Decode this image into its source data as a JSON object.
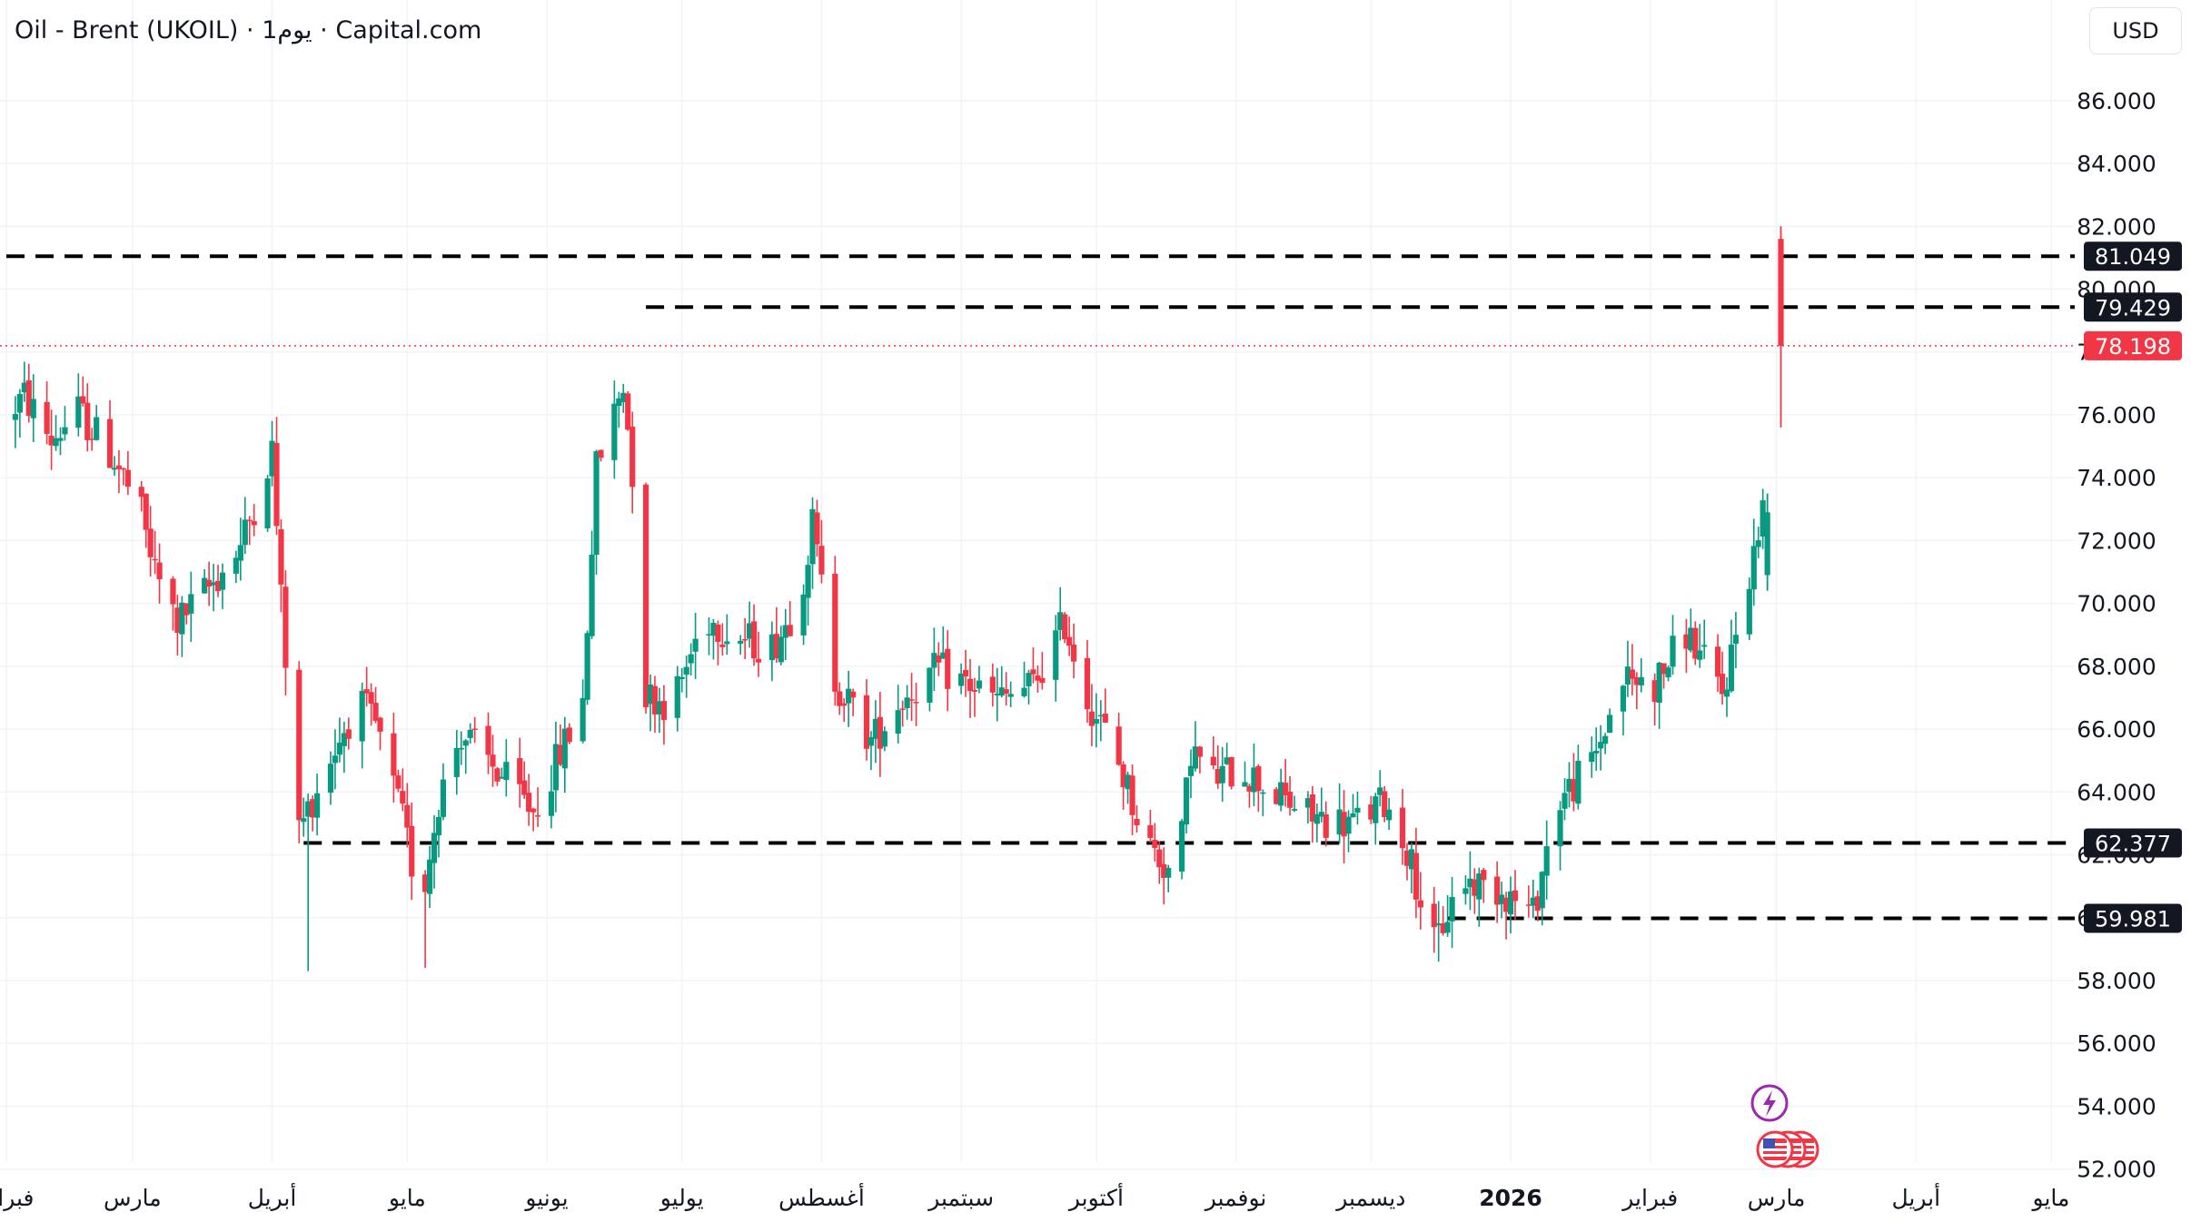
{
  "header": {
    "symbol": "Oil - Brent (UKOIL)",
    "interval": "1يوم",
    "broker": "Capital.com",
    "separator": "·"
  },
  "currency_button": "USD",
  "colors": {
    "up": "#089981",
    "down": "#f23645",
    "grid": "#f0f3fa",
    "level_badge": "#131722",
    "last_price_badge": "#f23645"
  },
  "events": {
    "flash_icon": "lightning-icon",
    "flag_icon": "us-flag-icon"
  },
  "chart_data": {
    "type": "candlestick",
    "title": "Oil - Brent (UKOIL) · 1يوم · Capital.com",
    "ylim": [
      51.5,
      87.7
    ],
    "y_ticks": [
      "86.000",
      "84.000",
      "82.000",
      "80.000",
      "78.000",
      "76.000",
      "74.000",
      "72.000",
      "70.000",
      "68.000",
      "66.000",
      "64.000",
      "62.000",
      "60.000",
      "58.000",
      "56.000",
      "54.000",
      "52.000"
    ],
    "x_labels": [
      {
        "label": "فبراير",
        "date": "2025-02-01"
      },
      {
        "label": "مارس",
        "date": "2025-03-01"
      },
      {
        "label": "أبريل",
        "date": "2025-04-01"
      },
      {
        "label": "مايو",
        "date": "2025-05-01"
      },
      {
        "label": "يونيو",
        "date": "2025-06-01"
      },
      {
        "label": "يوليو",
        "date": "2025-07-01"
      },
      {
        "label": "أغسطس",
        "date": "2025-08-01"
      },
      {
        "label": "سبتمبر",
        "date": "2025-09-01"
      },
      {
        "label": "أكتوبر",
        "date": "2025-10-01"
      },
      {
        "label": "نوفمبر",
        "date": "2025-11-01"
      },
      {
        "label": "ديسمبر",
        "date": "2025-12-01"
      },
      {
        "label": "2026",
        "date": "2026-01-01"
      },
      {
        "label": "فبراير",
        "date": "2026-02-01"
      },
      {
        "label": "مارس",
        "date": "2026-03-01"
      },
      {
        "label": "أبريل",
        "date": "2026-04-01"
      },
      {
        "label": "مايو",
        "date": "2026-05-01"
      }
    ],
    "price_levels": [
      {
        "value": 81.049,
        "label": "81.049",
        "from": "2025-02-01"
      },
      {
        "value": 79.429,
        "label": "79.429",
        "from": "2025-06-23"
      },
      {
        "value": 62.377,
        "label": "62.377",
        "from": "2025-04-08"
      },
      {
        "value": 59.981,
        "label": "59.981",
        "from": "2025-12-18"
      }
    ],
    "last_price": {
      "value": 78.198,
      "label": "78.198"
    },
    "anchors": [
      [
        "2025-02-01",
        75.8
      ],
      [
        "2025-02-06",
        76.6
      ],
      [
        "2025-02-12",
        75.2
      ],
      [
        "2025-02-18",
        76.1
      ],
      [
        "2025-02-26",
        74.6
      ],
      [
        "2025-03-04",
        72.8
      ],
      [
        "2025-03-07",
        71.0
      ],
      [
        "2025-03-12",
        69.4
      ],
      [
        "2025-03-19",
        70.5
      ],
      [
        "2025-03-26",
        71.8
      ],
      [
        "2025-04-02",
        74.9
      ],
      [
        "2025-04-04",
        70.1
      ],
      [
        "2025-04-08",
        62.8
      ],
      [
        "2025-04-14",
        64.8
      ],
      [
        "2025-04-21",
        66.9
      ],
      [
        "2025-04-25",
        66.1
      ],
      [
        "2025-05-01",
        63.1
      ],
      [
        "2025-05-05",
        60.3
      ],
      [
        "2025-05-09",
        63.8
      ],
      [
        "2025-05-14",
        65.9
      ],
      [
        "2025-05-21",
        64.8
      ],
      [
        "2025-05-30",
        63.4
      ],
      [
        "2025-06-04",
        64.9
      ],
      [
        "2025-06-10",
        66.9
      ],
      [
        "2025-06-13",
        74.3
      ],
      [
        "2025-06-19",
        77.0
      ],
      [
        "2025-06-23",
        71.5
      ],
      [
        "2025-06-24",
        67.1
      ],
      [
        "2025-06-30",
        66.8
      ],
      [
        "2025-07-07",
        69.6
      ],
      [
        "2025-07-15",
        68.9
      ],
      [
        "2025-07-22",
        68.6
      ],
      [
        "2025-07-28",
        70.1
      ],
      [
        "2025-07-31",
        72.5
      ],
      [
        "2025-08-05",
        67.6
      ],
      [
        "2025-08-13",
        65.6
      ],
      [
        "2025-08-20",
        67.0
      ],
      [
        "2025-08-28",
        67.9
      ],
      [
        "2025-09-03",
        67.5
      ],
      [
        "2025-09-10",
        66.9
      ],
      [
        "2025-09-18",
        67.4
      ],
      [
        "2025-09-25",
        69.4
      ],
      [
        "2025-09-30",
        67.0
      ],
      [
        "2025-10-06",
        65.3
      ],
      [
        "2025-10-13",
        62.5
      ],
      [
        "2025-10-20",
        61.1
      ],
      [
        "2025-10-23",
        65.4
      ],
      [
        "2025-10-28",
        64.4
      ],
      [
        "2025-11-03",
        64.8
      ],
      [
        "2025-11-12",
        63.8
      ],
      [
        "2025-11-19",
        63.2
      ],
      [
        "2025-11-28",
        63.0
      ],
      [
        "2025-12-05",
        63.7
      ],
      [
        "2025-12-10",
        62.2
      ],
      [
        "2025-12-16",
        59.1
      ],
      [
        "2025-12-22",
        61.2
      ],
      [
        "2025-12-31",
        60.9
      ],
      [
        "2026-01-07",
        60.1
      ],
      [
        "2026-01-12",
        63.6
      ],
      [
        "2026-01-20",
        64.9
      ],
      [
        "2026-01-27",
        67.6
      ],
      [
        "2026-02-03",
        67.4
      ],
      [
        "2026-02-10",
        69.1
      ],
      [
        "2026-02-18",
        67.1
      ],
      [
        "2026-02-24",
        71.0
      ],
      [
        "2026-02-27",
        72.9
      ]
    ],
    "last_candle": {
      "date": "2026-03-02",
      "open": 81.6,
      "high": 82.0,
      "low": 75.6,
      "close": 78.198
    },
    "prev_candle": {
      "date": "2026-02-27",
      "open": 70.9,
      "high": 73.5,
      "low": 70.4,
      "close": 72.9
    },
    "lows": [
      {
        "date": "2025-04-09",
        "low": 58.3
      },
      {
        "date": "2025-05-05",
        "low": 58.4
      },
      {
        "date": "2025-12-16",
        "low": 58.6
      }
    ],
    "grid": true
  }
}
